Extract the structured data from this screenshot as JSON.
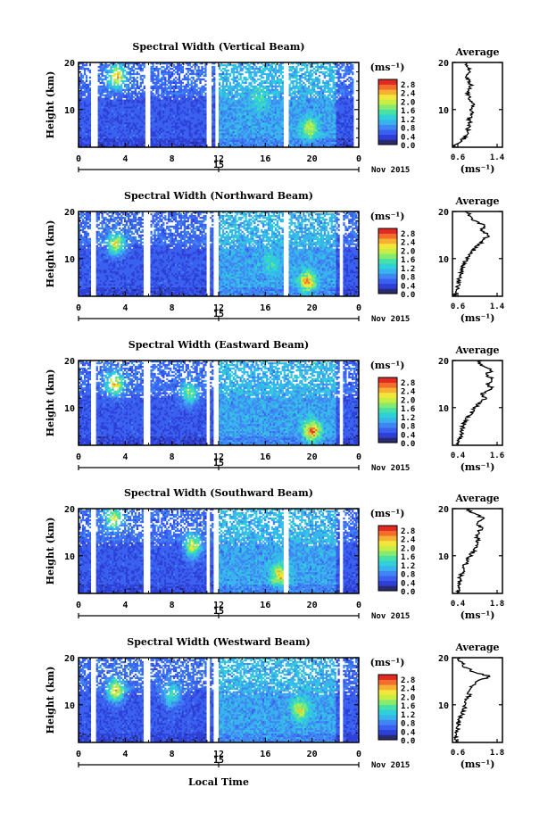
{
  "chart_data": [
    {
      "type": "heatmap",
      "title": "Spectral Width (Vertical Beam)",
      "ylabel": "Height (km)",
      "ylim": [
        2,
        20
      ],
      "yticks": [
        "20",
        "10"
      ],
      "xticks": [
        "0",
        "4",
        "8",
        "12",
        "16",
        "20",
        "0"
      ],
      "xlim": [
        0,
        24
      ],
      "date_tick": "15",
      "date_label": "Nov 2015",
      "colorbar": {
        "unit": "(ms⁻¹)",
        "ticks": [
          "2.8",
          "2.4",
          "2.0",
          "1.6",
          "1.2",
          "0.8",
          "0.4",
          "0.0"
        ]
      },
      "data_gaps_hours": [
        [
          1.1,
          1.6
        ],
        [
          5.7,
          6.1
        ],
        [
          10.9,
          11.4
        ],
        [
          11.7,
          12.0
        ],
        [
          17.6,
          18.0
        ],
        [
          23.5,
          24.0
        ]
      ],
      "hotspots": [
        {
          "t": 3.3,
          "h": 17,
          "v": 2.8
        },
        {
          "t": 19.8,
          "h": 6,
          "v": 2.0
        },
        {
          "t": 15.5,
          "h": 12,
          "v": 1.4
        }
      ],
      "profile": {
        "title": "Average",
        "unit": "(ms⁻¹)",
        "xticks": [
          "0.6",
          "1.4"
        ],
        "xlim": [
          0.6,
          1.4
        ],
        "ylim": [
          2,
          20
        ],
        "yticks": [
          "20",
          "10"
        ],
        "values": [
          [
            0.62,
            2
          ],
          [
            0.7,
            3
          ],
          [
            0.8,
            4
          ],
          [
            0.82,
            5
          ],
          [
            0.85,
            6
          ],
          [
            0.88,
            7
          ],
          [
            0.86,
            8
          ],
          [
            0.92,
            9
          ],
          [
            0.87,
            10
          ],
          [
            0.95,
            11
          ],
          [
            0.9,
            12
          ],
          [
            0.86,
            13
          ],
          [
            0.84,
            14
          ],
          [
            0.9,
            15
          ],
          [
            0.86,
            16
          ],
          [
            0.82,
            17
          ],
          [
            0.9,
            18
          ],
          [
            0.84,
            19
          ],
          [
            0.8,
            20
          ]
        ]
      }
    },
    {
      "type": "heatmap",
      "title": "Spectral Width (Northward Beam)",
      "ylabel": "Height (km)",
      "ylim": [
        2,
        20
      ],
      "yticks": [
        "20",
        "10"
      ],
      "xticks": [
        "0",
        "4",
        "8",
        "12",
        "16",
        "20",
        "0"
      ],
      "xlim": [
        0,
        24
      ],
      "date_tick": "15",
      "date_label": "Nov 2015",
      "colorbar": {
        "unit": "(ms⁻¹)",
        "ticks": [
          "2.8",
          "2.4",
          "2.0",
          "1.6",
          "1.2",
          "0.8",
          "0.4",
          "0.0"
        ]
      },
      "data_gaps_hours": [
        [
          1.1,
          1.5
        ],
        [
          5.6,
          6.1
        ],
        [
          10.9,
          11.3
        ],
        [
          11.6,
          12.0
        ],
        [
          17.6,
          18.0
        ],
        [
          22.4,
          22.6
        ]
      ],
      "hotspots": [
        {
          "t": 3.2,
          "h": 13,
          "v": 2.6
        },
        {
          "t": 19.6,
          "h": 5,
          "v": 2.6
        },
        {
          "t": 16.5,
          "h": 9,
          "v": 1.4
        }
      ],
      "profile": {
        "title": "Average",
        "unit": "(ms⁻¹)",
        "xticks": [
          "0.6",
          "1.4"
        ],
        "xlim": [
          0.6,
          1.4
        ],
        "ylim": [
          2,
          20
        ],
        "yticks": [
          "20",
          "10"
        ],
        "values": [
          [
            0.62,
            2
          ],
          [
            0.66,
            3
          ],
          [
            0.68,
            4
          ],
          [
            0.7,
            5
          ],
          [
            0.72,
            6
          ],
          [
            0.73,
            7
          ],
          [
            0.76,
            8
          ],
          [
            0.8,
            9
          ],
          [
            0.82,
            10
          ],
          [
            0.88,
            11
          ],
          [
            0.95,
            12
          ],
          [
            1.02,
            13
          ],
          [
            1.1,
            14
          ],
          [
            1.18,
            15
          ],
          [
            1.05,
            16
          ],
          [
            1.12,
            17
          ],
          [
            0.95,
            18
          ],
          [
            0.9,
            19
          ],
          [
            0.8,
            20
          ]
        ]
      }
    },
    {
      "type": "heatmap",
      "title": "Spectral Width (Eastward Beam)",
      "ylabel": "Height (km)",
      "ylim": [
        2,
        20
      ],
      "yticks": [
        "20",
        "10"
      ],
      "xticks": [
        "0",
        "4",
        "8",
        "12",
        "16",
        "20",
        "0"
      ],
      "xlim": [
        0,
        24
      ],
      "date_tick": "15",
      "date_label": "Nov 2015",
      "colorbar": {
        "unit": "(ms⁻¹)",
        "ticks": [
          "2.8",
          "2.4",
          "2.0",
          "1.6",
          "1.2",
          "0.8",
          "0.4",
          "0.0"
        ]
      },
      "data_gaps_hours": [
        [
          1.1,
          1.5
        ],
        [
          5.6,
          6.1
        ],
        [
          10.9,
          11.3
        ],
        [
          11.6,
          12.0
        ],
        [
          22.4,
          22.6
        ]
      ],
      "hotspots": [
        {
          "t": 3.1,
          "h": 15,
          "v": 2.8
        },
        {
          "t": 20.0,
          "h": 5,
          "v": 2.8
        },
        {
          "t": 9.5,
          "h": 13,
          "v": 2.2
        }
      ],
      "profile": {
        "title": "Average",
        "unit": "(ms⁻¹)",
        "xticks": [
          "0.4",
          "1.6"
        ],
        "xlim": [
          0.4,
          1.6
        ],
        "ylim": [
          2,
          20
        ],
        "yticks": [
          "20",
          "10"
        ],
        "values": [
          [
            0.5,
            2
          ],
          [
            0.55,
            3
          ],
          [
            0.6,
            4
          ],
          [
            0.62,
            5
          ],
          [
            0.65,
            6
          ],
          [
            0.7,
            7
          ],
          [
            0.78,
            8
          ],
          [
            0.85,
            9
          ],
          [
            0.95,
            10
          ],
          [
            1.05,
            11
          ],
          [
            1.2,
            12
          ],
          [
            1.1,
            13
          ],
          [
            1.35,
            14
          ],
          [
            1.25,
            15
          ],
          [
            1.4,
            16
          ],
          [
            1.2,
            17
          ],
          [
            1.35,
            18
          ],
          [
            1.1,
            19
          ],
          [
            1.0,
            20
          ]
        ]
      }
    },
    {
      "type": "heatmap",
      "title": "Spectral Width (Southward Beam)",
      "ylabel": "Height (km)",
      "ylim": [
        2,
        20
      ],
      "yticks": [
        "20",
        "10"
      ],
      "xticks": [
        "0",
        "4",
        "8",
        "12",
        "16",
        "20",
        "0"
      ],
      "xlim": [
        0,
        24
      ],
      "date_tick": "15",
      "date_label": "Nov 2015",
      "colorbar": {
        "unit": "(ms⁻¹)",
        "ticks": [
          "2.8",
          "2.4",
          "2.0",
          "1.6",
          "1.2",
          "0.8",
          "0.4",
          "0.0"
        ]
      },
      "data_gaps_hours": [
        [
          1.1,
          1.5
        ],
        [
          5.6,
          6.1
        ],
        [
          10.9,
          11.3
        ],
        [
          11.6,
          12.0
        ],
        [
          17.6,
          18.0
        ],
        [
          22.4,
          22.6
        ]
      ],
      "hotspots": [
        {
          "t": 3.0,
          "h": 18,
          "v": 2.6
        },
        {
          "t": 9.8,
          "h": 12,
          "v": 2.6
        },
        {
          "t": 17.2,
          "h": 6,
          "v": 2.4
        }
      ],
      "profile": {
        "title": "Average",
        "unit": "(ms⁻¹)",
        "xticks": [
          "0.4",
          "1.8"
        ],
        "xlim": [
          0.4,
          1.8
        ],
        "ylim": [
          2,
          20
        ],
        "yticks": [
          "20",
          "10"
        ],
        "values": [
          [
            0.55,
            2
          ],
          [
            0.6,
            3
          ],
          [
            0.62,
            4
          ],
          [
            0.6,
            5
          ],
          [
            0.65,
            6
          ],
          [
            0.7,
            7
          ],
          [
            0.75,
            8
          ],
          [
            0.82,
            9
          ],
          [
            0.9,
            10
          ],
          [
            1.0,
            11
          ],
          [
            1.05,
            12
          ],
          [
            1.12,
            13
          ],
          [
            1.08,
            14
          ],
          [
            1.15,
            15
          ],
          [
            1.2,
            16
          ],
          [
            1.1,
            17
          ],
          [
            1.25,
            18
          ],
          [
            1.0,
            19
          ],
          [
            0.8,
            20
          ]
        ]
      }
    },
    {
      "type": "heatmap",
      "title": "Spectral Width (Westward Beam)",
      "ylabel": "Height (km)",
      "ylim": [
        2,
        20
      ],
      "yticks": [
        "20",
        "10"
      ],
      "xticks": [
        "0",
        "4",
        "8",
        "12",
        "16",
        "20",
        "0"
      ],
      "xlim": [
        0,
        24
      ],
      "date_tick": "15",
      "date_label": "Nov 2015",
      "colorbar": {
        "unit": "(ms⁻¹)",
        "ticks": [
          "2.8",
          "2.4",
          "2.0",
          "1.6",
          "1.2",
          "0.8",
          "0.4",
          "0.0"
        ]
      },
      "data_gaps_hours": [
        [
          1.1,
          1.5
        ],
        [
          5.6,
          6.1
        ],
        [
          10.9,
          11.3
        ],
        [
          11.6,
          12.0
        ],
        [
          22.4,
          22.6
        ]
      ],
      "hotspots": [
        {
          "t": 3.2,
          "h": 13,
          "v": 2.8
        },
        {
          "t": 19.0,
          "h": 9,
          "v": 2.2
        },
        {
          "t": 8.0,
          "h": 12,
          "v": 2.0
        }
      ],
      "profile": {
        "title": "Average",
        "unit": "(ms⁻¹)",
        "xticks": [
          "0.6",
          "1.8"
        ],
        "xlim": [
          0.6,
          1.8
        ],
        "ylim": [
          2,
          20
        ],
        "yticks": [
          "20",
          "10"
        ],
        "values": [
          [
            0.65,
            2
          ],
          [
            0.68,
            3
          ],
          [
            0.7,
            4
          ],
          [
            0.72,
            5
          ],
          [
            0.75,
            6
          ],
          [
            0.78,
            7
          ],
          [
            0.82,
            8
          ],
          [
            0.88,
            9
          ],
          [
            0.92,
            10
          ],
          [
            0.95,
            11
          ],
          [
            1.0,
            12
          ],
          [
            1.02,
            13
          ],
          [
            1.05,
            14
          ],
          [
            1.2,
            15
          ],
          [
            1.5,
            16
          ],
          [
            1.1,
            17
          ],
          [
            0.9,
            18
          ],
          [
            0.8,
            19
          ],
          [
            0.75,
            20
          ]
        ]
      }
    }
  ],
  "footer": {
    "xlabel": "Local Time"
  },
  "colormap": [
    "#2a2a6e",
    "#2d3fd6",
    "#3a60f0",
    "#3f86f2",
    "#38b3ee",
    "#2fd0d8",
    "#47e0a8",
    "#86ea6e",
    "#c8ee45",
    "#f3e63a",
    "#f6b033",
    "#f36d2c",
    "#e02a22"
  ]
}
